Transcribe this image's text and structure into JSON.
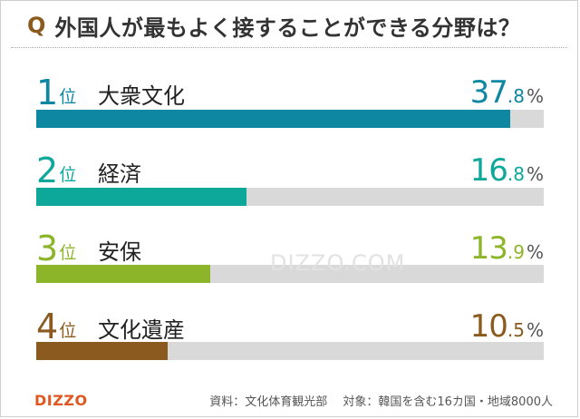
{
  "title": {
    "q_mark": "Q",
    "text": "外国人が最もよく接することができる分野は？"
  },
  "colors": {
    "track": "#d9d9d9",
    "q_mark": "#8a5a1e"
  },
  "chart_data": {
    "type": "bar",
    "orientation": "horizontal",
    "title": "外国人が最もよく接することができる分野は？",
    "xlim": [
      0,
      40.5
    ],
    "items": [
      {
        "rank": "1",
        "rank_suffix": "位",
        "category": "大衆文化",
        "value": 37.8,
        "int": "37",
        "dec": ".8",
        "unit": "%",
        "color": "#0e87a3"
      },
      {
        "rank": "2",
        "rank_suffix": "位",
        "category": "経済",
        "value": 16.8,
        "int": "16",
        "dec": ".8",
        "unit": "%",
        "color": "#0ea89a"
      },
      {
        "rank": "3",
        "rank_suffix": "位",
        "category": "安保",
        "value": 13.9,
        "int": "13",
        "dec": ".9",
        "unit": "%",
        "color": "#8db52a"
      },
      {
        "rank": "4",
        "rank_suffix": "位",
        "category": "文化遺産",
        "value": 10.5,
        "int": "10",
        "dec": ".5",
        "unit": "%",
        "color": "#8a5a1e"
      }
    ]
  },
  "watermark": "DIZZO.COM",
  "logo": "DIZZO",
  "source": "資料：文化体育観光部　 対象：韓国を含む16カ国・地域8000人"
}
